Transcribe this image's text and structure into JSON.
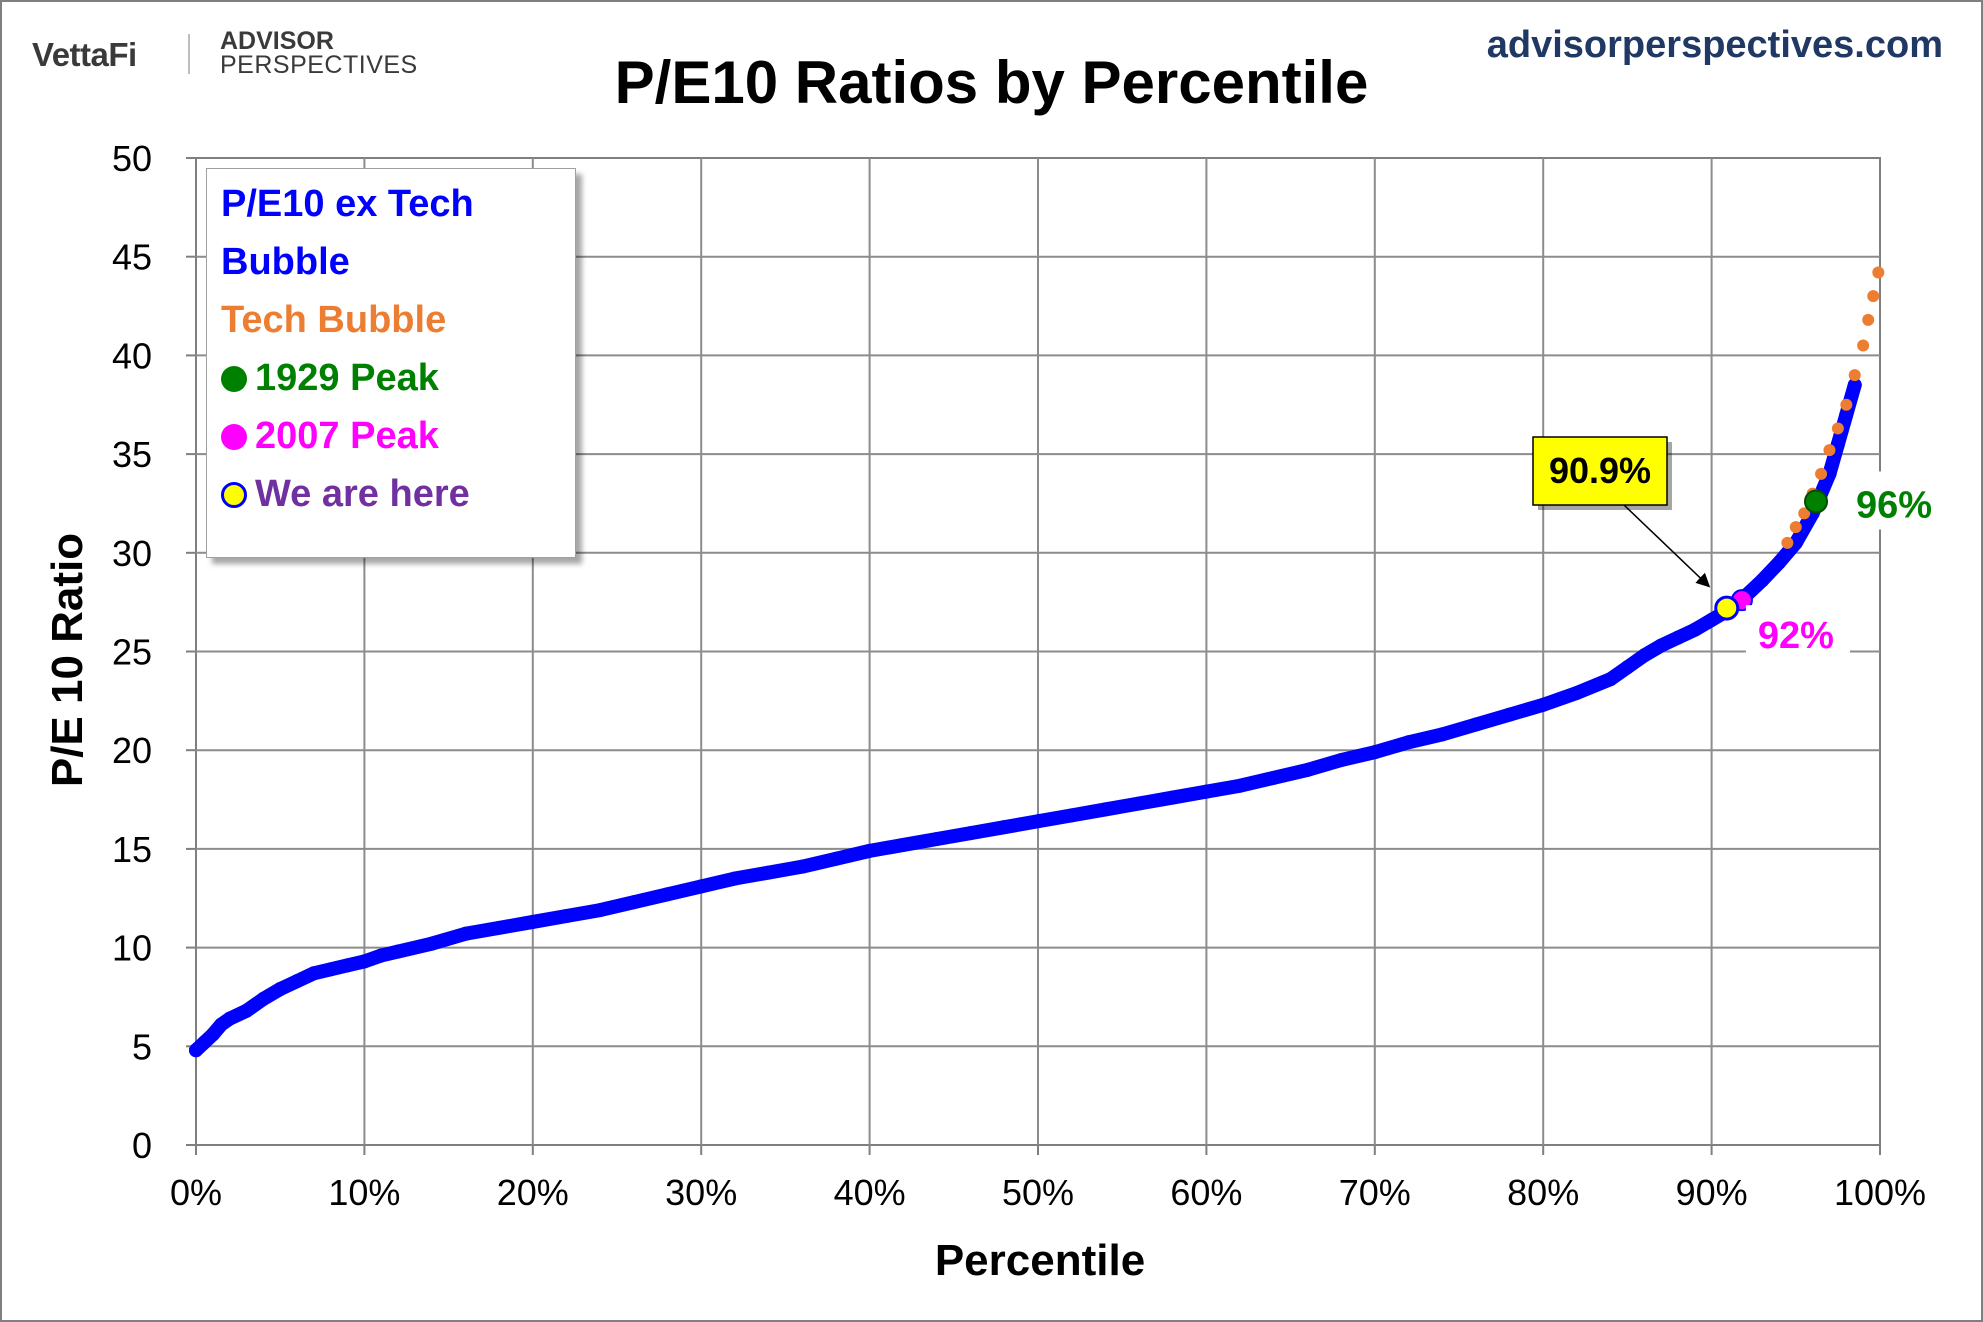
{
  "header": {
    "brand": "VettaFi",
    "brand2_line1": "ADVISOR",
    "brand2_line2": "PERSPECTIVES",
    "site": "advisorperspectives.com"
  },
  "colors": {
    "ex_tech": "#0000ff",
    "tech_bubble": "#ed7d31",
    "peak_1929": "#008000",
    "peak_2007": "#ff00ff",
    "we_are_here": "#ffff00",
    "we_are_here_label": "#7030a0"
  },
  "legend": {
    "ex_tech_line1": "P/E10 ex Tech",
    "ex_tech_line2": "Bubble",
    "tech_bubble": "Tech Bubble",
    "peak_1929": "1929 Peak",
    "peak_2007": "2007 Peak",
    "we_are_here": "We are here"
  },
  "chart_data": {
    "type": "scatter",
    "title": "P/E10 Ratios by Percentile",
    "xlabel": "Percentile",
    "ylabel": "P/E 10 Ratio",
    "xlim": [
      0,
      100
    ],
    "ylim": [
      0,
      50
    ],
    "x_ticks": [
      "0%",
      "10%",
      "20%",
      "30%",
      "40%",
      "50%",
      "60%",
      "70%",
      "80%",
      "90%",
      "100%"
    ],
    "y_ticks": [
      "0",
      "5",
      "10",
      "15",
      "20",
      "25",
      "30",
      "35",
      "40",
      "45",
      "50"
    ],
    "grid": true,
    "legend_position": "top-left",
    "series": [
      {
        "name": "P/E10 ex Tech Bubble",
        "color": "#0000ff",
        "points": [
          [
            0,
            4.8
          ],
          [
            0.5,
            5.2
          ],
          [
            1,
            5.6
          ],
          [
            1.5,
            6.1
          ],
          [
            2,
            6.4
          ],
          [
            3,
            6.8
          ],
          [
            4,
            7.4
          ],
          [
            5,
            7.9
          ],
          [
            6,
            8.3
          ],
          [
            7,
            8.7
          ],
          [
            8,
            8.9
          ],
          [
            9,
            9.1
          ],
          [
            10,
            9.3
          ],
          [
            11,
            9.6
          ],
          [
            12,
            9.8
          ],
          [
            14,
            10.2
          ],
          [
            16,
            10.7
          ],
          [
            18,
            11.0
          ],
          [
            20,
            11.3
          ],
          [
            22,
            11.6
          ],
          [
            24,
            11.9
          ],
          [
            26,
            12.3
          ],
          [
            28,
            12.7
          ],
          [
            30,
            13.1
          ],
          [
            32,
            13.5
          ],
          [
            34,
            13.8
          ],
          [
            36,
            14.1
          ],
          [
            38,
            14.5
          ],
          [
            40,
            14.9
          ],
          [
            42,
            15.2
          ],
          [
            44,
            15.5
          ],
          [
            46,
            15.8
          ],
          [
            48,
            16.1
          ],
          [
            50,
            16.4
          ],
          [
            52,
            16.7
          ],
          [
            54,
            17.0
          ],
          [
            56,
            17.3
          ],
          [
            58,
            17.6
          ],
          [
            60,
            17.9
          ],
          [
            62,
            18.2
          ],
          [
            64,
            18.6
          ],
          [
            66,
            19.0
          ],
          [
            68,
            19.5
          ],
          [
            70,
            19.9
          ],
          [
            72,
            20.4
          ],
          [
            74,
            20.8
          ],
          [
            76,
            21.3
          ],
          [
            78,
            21.8
          ],
          [
            80,
            22.3
          ],
          [
            82,
            22.9
          ],
          [
            84,
            23.6
          ],
          [
            85,
            24.2
          ],
          [
            86,
            24.8
          ],
          [
            87,
            25.3
          ],
          [
            88,
            25.7
          ],
          [
            89,
            26.1
          ],
          [
            90,
            26.6
          ],
          [
            91,
            27.1
          ],
          [
            92,
            27.8
          ],
          [
            93,
            28.6
          ],
          [
            94,
            29.5
          ],
          [
            95,
            30.5
          ],
          [
            96,
            32.0
          ],
          [
            96.5,
            33.0
          ],
          [
            97,
            34.0
          ],
          [
            97.5,
            35.5
          ],
          [
            98,
            37.0
          ],
          [
            98.5,
            38.5
          ]
        ]
      },
      {
        "name": "Tech Bubble",
        "color": "#ed7d31",
        "points": [
          [
            94.5,
            30.5
          ],
          [
            95,
            31.3
          ],
          [
            95.5,
            32.0
          ],
          [
            96,
            33.0
          ],
          [
            96.5,
            34.0
          ],
          [
            97,
            35.2
          ],
          [
            97.5,
            36.3
          ],
          [
            98,
            37.5
          ],
          [
            98.5,
            39.0
          ],
          [
            99,
            40.5
          ],
          [
            99.3,
            41.8
          ],
          [
            99.6,
            43.0
          ],
          [
            99.9,
            44.2
          ]
        ]
      }
    ],
    "markers": [
      {
        "name": "1929 Peak",
        "x": 96.2,
        "y": 32.6,
        "color": "#008000",
        "label": "96%"
      },
      {
        "name": "2007 Peak",
        "x": 91.8,
        "y": 27.6,
        "color": "#ff00ff",
        "label": "92%"
      },
      {
        "name": "We are here",
        "x": 90.9,
        "y": 27.2,
        "color": "#ffff00",
        "label": "90.9%"
      }
    ]
  }
}
